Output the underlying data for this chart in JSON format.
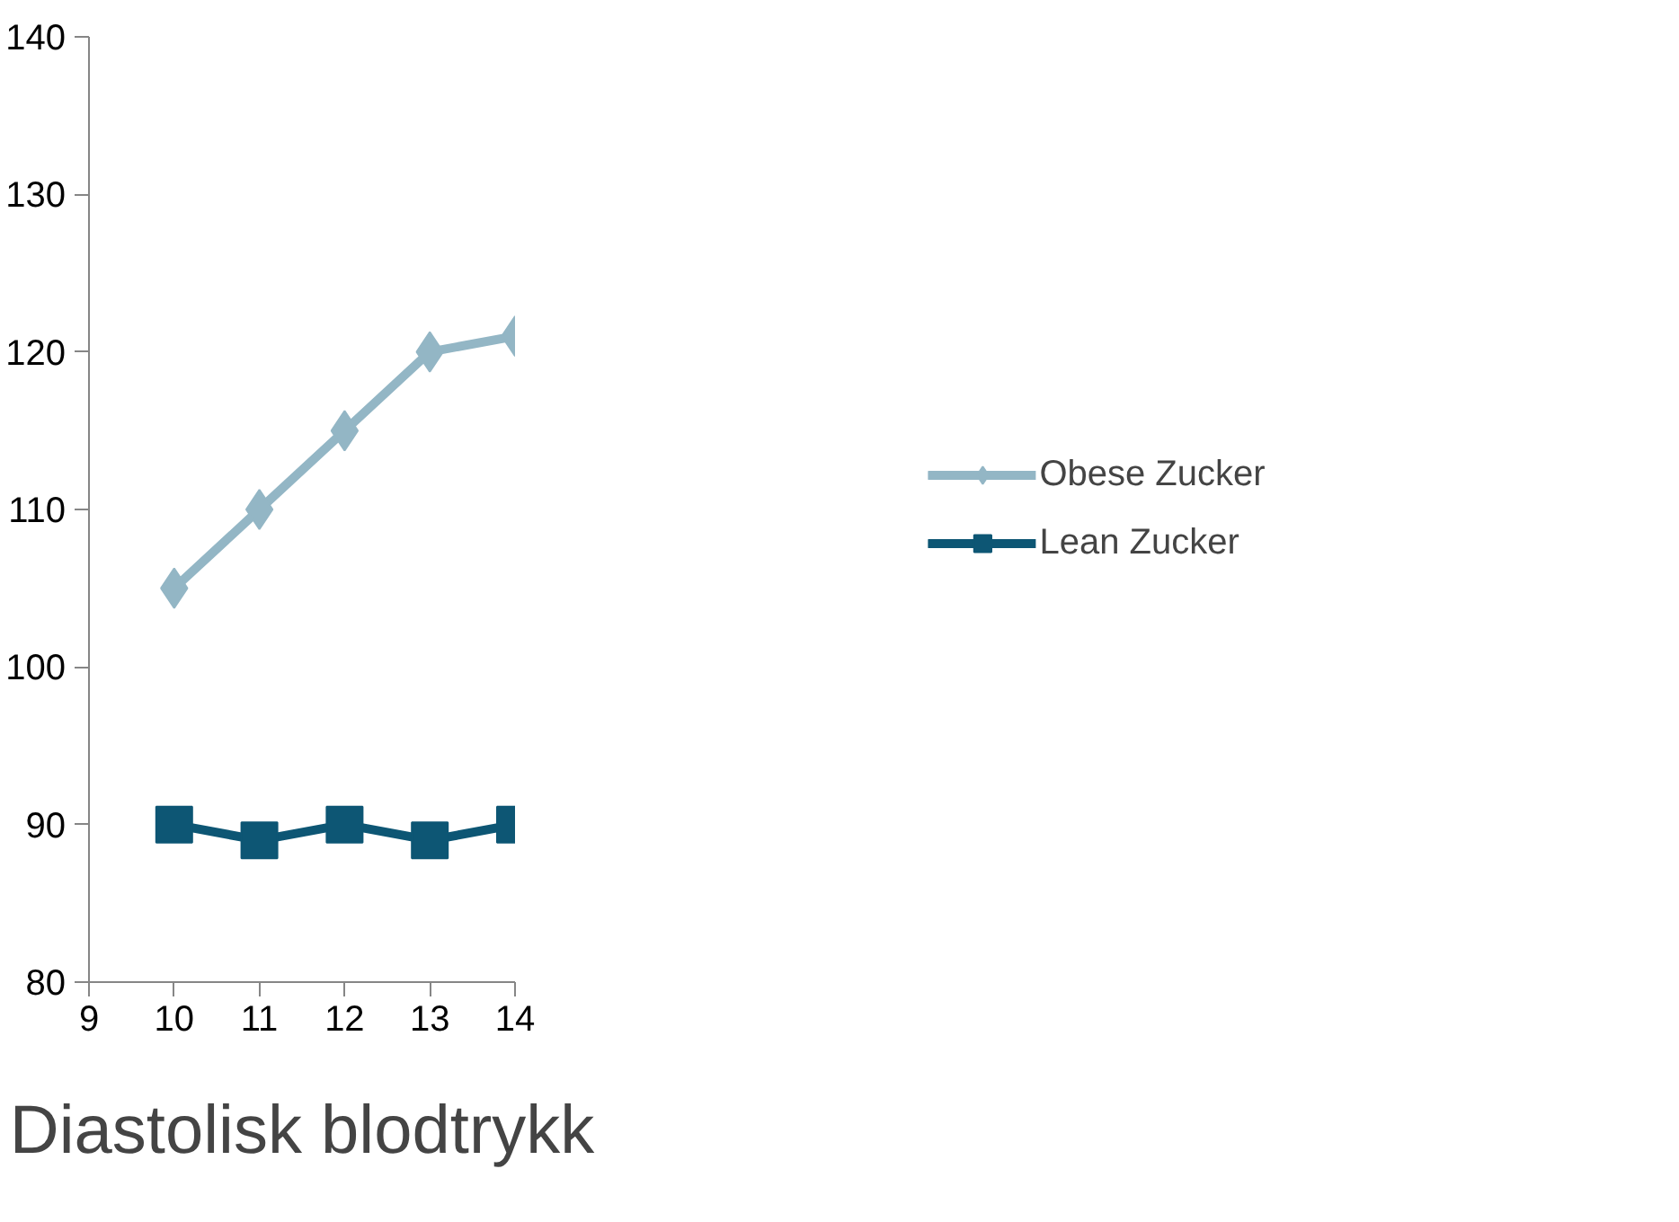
{
  "chart_data": {
    "type": "line",
    "title": "Diastolisk blodtrykk",
    "x": [
      10,
      11,
      12,
      13,
      14
    ],
    "series": [
      {
        "name": "Obese Zucker",
        "color": "#93b6c5",
        "values": [
          105,
          110,
          115,
          120,
          121
        ],
        "marker": "diamond"
      },
      {
        "name": "Lean Zucker",
        "color": "#0d5674",
        "values": [
          90,
          89,
          90,
          89,
          90
        ],
        "marker": "square"
      }
    ],
    "xlim": [
      9,
      14
    ],
    "xticks": [
      9,
      10,
      11,
      12,
      13,
      14
    ],
    "ylim": [
      80,
      140
    ],
    "yticks": [
      80,
      90,
      100,
      110,
      120,
      130,
      140
    ],
    "grid": false,
    "legend": "right",
    "line_style": "solid"
  }
}
